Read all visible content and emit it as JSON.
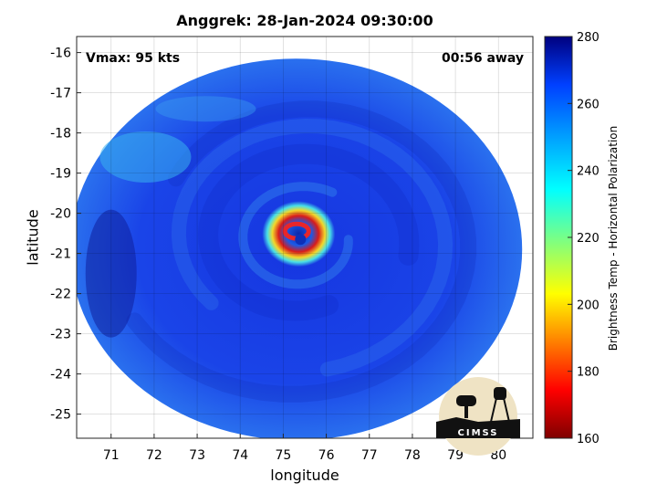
{
  "title": "Anggrek: 28-Jan-2024 09:30:00",
  "vmax_label": "Vmax: 95 kts",
  "time_away_label": "00:56 away",
  "x_axis": {
    "label": "longitude",
    "range": [
      70.2,
      80.8
    ],
    "ticks": [
      71,
      72,
      73,
      74,
      75,
      76,
      77,
      78,
      79,
      80
    ]
  },
  "y_axis": {
    "label": "latitude",
    "range": [
      -25.6,
      -15.6
    ],
    "ticks": [
      -16,
      -17,
      -18,
      -19,
      -20,
      -21,
      -22,
      -23,
      -24,
      -25
    ]
  },
  "grid": true,
  "colorbar": {
    "label": "Brightness Temp - Horizontal Polarization",
    "range": [
      160,
      280
    ],
    "ticks": [
      280,
      260,
      240,
      220,
      200,
      180,
      160
    ],
    "colormap": "jet"
  },
  "storm_center": {
    "lon": 75.4,
    "lat": -20.65
  },
  "swath": {
    "center_lon": 75.3,
    "center_lat": -20.9,
    "radius_lon": 5.25,
    "radius_lat": 4.75
  },
  "logo": {
    "text": "CIMSS",
    "icon": "cimss-logo-icon"
  },
  "colors": {
    "background_outside_swath": "#ffffff",
    "swath_base": "#1a38e8",
    "eyewall_warm": "#e8262a",
    "eye": "#0d2fb8"
  }
}
